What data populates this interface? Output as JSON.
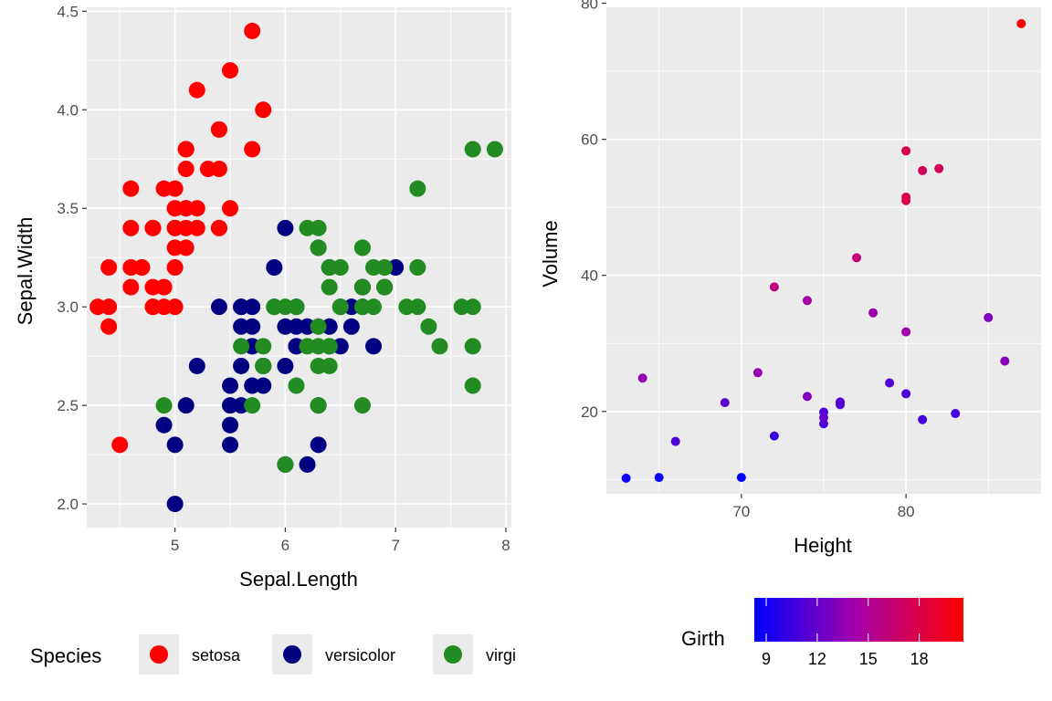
{
  "chart_data": [
    {
      "type": "scatter",
      "xlabel": "Sepal.Length",
      "ylabel": "Sepal.Width",
      "xlim": [
        4.2,
        8.05
      ],
      "ylim": [
        1.88,
        4.52
      ],
      "xticks": [
        5,
        6,
        7,
        8
      ],
      "yticks": [
        2.0,
        2.5,
        3.0,
        3.5,
        4.0,
        4.5
      ],
      "ytick_labels": [
        "2.0",
        "2.5",
        "3.0",
        "3.5",
        "4.0",
        "4.5"
      ],
      "grid": true,
      "legend": {
        "title": "Species",
        "placement": "bottom",
        "entries": [
          "setosa",
          "versicolor",
          "virgi"
        ]
      },
      "series": [
        {
          "name": "setosa",
          "color": "#FF0000",
          "x": [
            5.1,
            4.9,
            4.7,
            4.6,
            5.0,
            5.4,
            4.6,
            5.0,
            4.4,
            4.9,
            5.4,
            4.8,
            4.8,
            4.3,
            5.8,
            5.7,
            5.4,
            5.1,
            5.7,
            5.1,
            5.4,
            5.1,
            4.6,
            5.1,
            4.8,
            5.0,
            5.0,
            5.2,
            5.2,
            4.7,
            4.8,
            5.4,
            5.2,
            5.5,
            4.9,
            5.0,
            5.5,
            4.9,
            4.4,
            5.1,
            5.0,
            4.5,
            4.4,
            5.0,
            5.1,
            4.8,
            5.1,
            4.6,
            5.3,
            5.0
          ],
          "y": [
            3.5,
            3.0,
            3.2,
            3.1,
            3.6,
            3.9,
            3.4,
            3.4,
            2.9,
            3.1,
            3.7,
            3.4,
            3.0,
            3.0,
            4.0,
            4.4,
            3.9,
            3.5,
            3.8,
            3.8,
            3.4,
            3.7,
            3.6,
            3.3,
            3.4,
            3.0,
            3.4,
            3.5,
            3.4,
            3.2,
            3.1,
            3.4,
            4.1,
            4.2,
            3.1,
            3.2,
            3.5,
            3.6,
            3.0,
            3.4,
            3.5,
            2.3,
            3.2,
            3.5,
            3.8,
            3.0,
            3.8,
            3.2,
            3.7,
            3.3
          ]
        },
        {
          "name": "versicolor",
          "color": "#000080",
          "x": [
            7.0,
            6.4,
            6.9,
            5.5,
            6.5,
            5.7,
            6.3,
            4.9,
            6.6,
            5.2,
            5.0,
            5.9,
            6.0,
            6.1,
            5.6,
            6.7,
            5.6,
            5.8,
            6.2,
            5.6,
            5.9,
            6.1,
            6.3,
            6.1,
            6.4,
            6.6,
            6.8,
            6.7,
            6.0,
            5.7,
            5.5,
            5.5,
            5.8,
            6.0,
            5.4,
            6.0,
            6.7,
            6.3,
            5.6,
            5.5,
            5.5,
            6.1,
            5.8,
            5.0,
            5.6,
            5.7,
            5.7,
            6.2,
            5.1,
            5.7
          ],
          "y": [
            3.2,
            3.2,
            3.1,
            2.3,
            2.8,
            2.8,
            3.3,
            2.4,
            2.9,
            2.7,
            2.0,
            3.0,
            2.2,
            2.9,
            2.9,
            3.1,
            3.0,
            2.7,
            2.2,
            2.5,
            3.2,
            2.8,
            2.5,
            2.8,
            2.9,
            3.0,
            2.8,
            3.0,
            2.9,
            2.6,
            2.4,
            2.4,
            2.7,
            2.7,
            3.0,
            3.4,
            3.1,
            2.3,
            3.0,
            2.5,
            2.6,
            3.0,
            2.6,
            2.3,
            2.7,
            3.0,
            2.9,
            2.9,
            2.5,
            2.8
          ]
        },
        {
          "name": "virginica",
          "color": "#228B22",
          "x": [
            6.3,
            5.8,
            7.1,
            6.3,
            6.5,
            7.6,
            4.9,
            7.3,
            6.7,
            7.2,
            6.5,
            6.4,
            6.8,
            5.7,
            5.8,
            6.4,
            6.5,
            7.7,
            7.7,
            6.0,
            6.9,
            5.6,
            7.7,
            6.3,
            6.7,
            7.2,
            6.2,
            6.1,
            6.4,
            7.2,
            7.4,
            7.9,
            6.4,
            6.3,
            6.1,
            7.7,
            6.3,
            6.4,
            6.0,
            6.9,
            6.7,
            6.9,
            5.8,
            6.8,
            6.7,
            6.7,
            6.3,
            6.5,
            6.2,
            5.9
          ],
          "y": [
            3.3,
            2.7,
            3.0,
            2.9,
            3.0,
            3.0,
            2.5,
            2.9,
            2.5,
            3.6,
            3.2,
            2.7,
            3.0,
            2.5,
            2.8,
            3.2,
            3.0,
            3.8,
            2.6,
            2.2,
            3.2,
            2.8,
            2.8,
            2.7,
            3.3,
            3.2,
            2.8,
            3.0,
            2.8,
            3.0,
            2.8,
            3.8,
            2.8,
            2.8,
            2.6,
            3.0,
            3.4,
            3.1,
            3.0,
            3.1,
            3.1,
            3.1,
            2.7,
            3.2,
            3.3,
            3.0,
            2.5,
            3.0,
            3.4,
            3.0
          ]
        }
      ]
    },
    {
      "type": "scatter",
      "xlabel": "Height",
      "ylabel": "Volume",
      "xlim": [
        61.8,
        88.2
      ],
      "ylim": [
        7.9,
        79.4
      ],
      "xticks": [
        70,
        80
      ],
      "yticks": [
        20,
        40,
        60,
        80
      ],
      "grid": true,
      "color_scale": {
        "title": "Girth",
        "low": "#0000FF",
        "high": "#FF0000",
        "range": [
          8.3,
          20.6
        ],
        "ticks": [
          9,
          12,
          15,
          18
        ],
        "placement": "bottom"
      },
      "x": [
        70,
        65,
        63,
        72,
        81,
        83,
        66,
        75,
        80,
        75,
        79,
        76,
        76,
        69,
        75,
        74,
        85,
        86,
        71,
        64,
        78,
        80,
        74,
        72,
        77,
        81,
        82,
        80,
        80,
        80,
        87
      ],
      "y": [
        10.3,
        10.3,
        10.2,
        16.4,
        18.8,
        19.7,
        15.6,
        18.2,
        22.6,
        19.9,
        24.2,
        21.0,
        21.4,
        21.3,
        19.1,
        22.2,
        33.8,
        27.4,
        25.7,
        24.9,
        34.5,
        31.7,
        36.3,
        38.3,
        42.6,
        55.4,
        55.7,
        58.3,
        51.5,
        51.0,
        77.0
      ],
      "color_values": [
        8.3,
        8.6,
        8.8,
        10.5,
        10.7,
        10.8,
        11.0,
        11.0,
        11.1,
        11.2,
        11.3,
        11.4,
        11.4,
        11.7,
        12.0,
        12.9,
        12.9,
        13.3,
        13.7,
        13.8,
        14.0,
        14.2,
        14.5,
        16.0,
        16.3,
        17.3,
        17.5,
        17.9,
        18.0,
        18.0,
        20.6
      ]
    }
  ]
}
